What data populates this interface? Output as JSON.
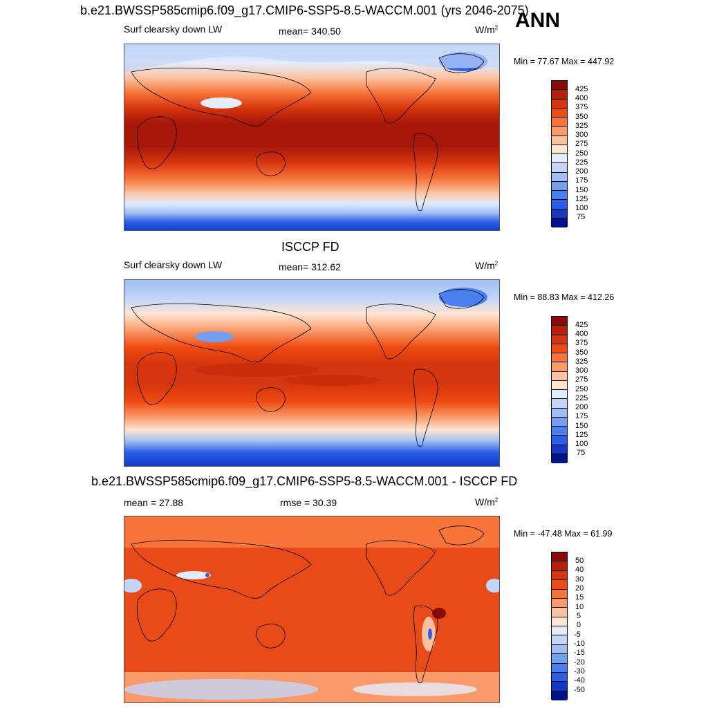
{
  "header": {
    "main_title": "b.e21.BWSSP585cmip6.f09_g17.CMIP6-SSP5-8.5-WACCM.001 (yrs 2046-2075)",
    "season": "ANN"
  },
  "panel1": {
    "field": "Surf clearsky down LW",
    "mean_label": "mean= 340.50",
    "units_base": "W/m",
    "units_exp": "2",
    "minmax": "Min =  77.67 Max = 447.92",
    "colorbar_labels": [
      "425",
      "400",
      "375",
      "350",
      "325",
      "300",
      "275",
      "250",
      "225",
      "200",
      "175",
      "150",
      "125",
      "100",
      "75"
    ]
  },
  "panel2": {
    "title": "ISCCP FD",
    "field": "Surf clearsky down LW",
    "mean_label": "mean= 312.62",
    "units_base": "W/m",
    "units_exp": "2",
    "minmax": "Min =  88.83 Max = 412.26",
    "colorbar_labels": [
      "425",
      "400",
      "375",
      "350",
      "325",
      "300",
      "275",
      "250",
      "225",
      "200",
      "175",
      "150",
      "125",
      "100",
      "75"
    ]
  },
  "panel3": {
    "title": "b.e21.BWSSP585cmip6.f09_g17.CMIP6-SSP5-8.5-WACCM.001 - ISCCP FD",
    "mean_label": "mean =  27.88",
    "rmse_label": "rmse =  30.39",
    "units_base": "W/m",
    "units_exp": "2",
    "minmax": "Min = -47.48 Max =  61.99",
    "colorbar_labels": [
      "50",
      "40",
      "30",
      "20",
      "15",
      "10",
      "5",
      "0",
      "-5",
      "-10",
      "-15",
      "-20",
      "-30",
      "-40",
      "-50"
    ]
  },
  "colors": {
    "scale16": [
      "#8b0a0a",
      "#b5200c",
      "#d6360e",
      "#ef4a12",
      "#f7743a",
      "#fa9a6a",
      "#fcc2a0",
      "#fde5d2",
      "#e3ecfb",
      "#c3d6f8",
      "#9ebef4",
      "#739ff0",
      "#4a7ff0",
      "#2a5ee8",
      "#1238c4",
      "#00138a"
    ]
  }
}
